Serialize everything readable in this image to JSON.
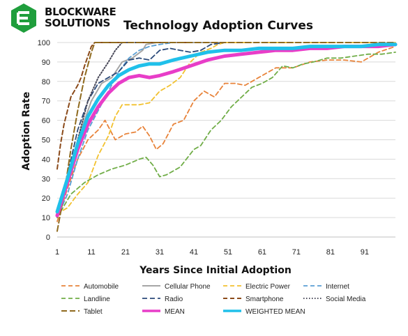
{
  "brand": {
    "line1": "BLOCKWARE",
    "line2": "SOLUTIONS",
    "accent": "#1f9e3c"
  },
  "chart_data": {
    "type": "line",
    "title": "Technology Adoption Curves",
    "xlabel": "Years Since Initial Adoption",
    "ylabel": "Adoption Rate",
    "xlim": [
      1,
      100
    ],
    "ylim": [
      0,
      100
    ],
    "xticks": [
      1,
      11,
      21,
      31,
      41,
      51,
      61,
      71,
      81,
      91
    ],
    "yticks": [
      0,
      10,
      20,
      30,
      40,
      50,
      60,
      70,
      80,
      90,
      100
    ],
    "grid": "horizontal",
    "legend": "bottom",
    "series": [
      {
        "name": "Automobile",
        "color": "#e8833a",
        "dash": "6,4",
        "width": 1.8,
        "x": [
          1,
          4,
          7,
          10,
          13,
          15,
          18,
          21,
          24,
          26,
          28,
          30,
          32,
          35,
          38,
          41,
          44,
          47,
          50,
          53,
          56,
          60,
          65,
          70,
          75,
          80,
          85,
          90,
          95,
          100
        ],
        "y": [
          8,
          25,
          40,
          50,
          55,
          60,
          50,
          53,
          54,
          57,
          52,
          45,
          48,
          58,
          60,
          70,
          75,
          72,
          79,
          79,
          78,
          82,
          87,
          87,
          90,
          91,
          91,
          90,
          95,
          98
        ]
      },
      {
        "name": "Cellular Phone",
        "color": "#a6a6a6",
        "dash": "",
        "width": 2,
        "x": [
          1,
          5,
          8,
          11,
          14,
          17,
          20,
          23,
          26,
          27,
          30,
          35,
          40,
          45,
          50
        ],
        "y": [
          10,
          35,
          55,
          70,
          79,
          82,
          90,
          92,
          96,
          99,
          100,
          100,
          100,
          100,
          100
        ]
      },
      {
        "name": "Electric Power",
        "color": "#f2c12e",
        "dash": "6,4",
        "width": 1.8,
        "x": [
          1,
          4,
          7,
          10,
          13,
          16,
          18,
          20,
          22,
          25,
          28,
          31,
          34,
          37,
          40,
          43,
          46,
          48,
          50,
          55,
          60,
          70,
          80,
          90,
          100
        ],
        "y": [
          12,
          15,
          22,
          28,
          42,
          52,
          62,
          68,
          68,
          68,
          69,
          75,
          78,
          82,
          90,
          95,
          97,
          99,
          100,
          100,
          100,
          100,
          100,
          100,
          100
        ]
      },
      {
        "name": "Internet",
        "color": "#5a9fd4",
        "dash": "6,4",
        "width": 1.8,
        "x": [
          1,
          4,
          7,
          10,
          13,
          16,
          19,
          22,
          25,
          28,
          31,
          35
        ],
        "y": [
          10,
          22,
          40,
          55,
          65,
          75,
          85,
          92,
          96,
          98,
          99,
          100
        ]
      },
      {
        "name": "Landline",
        "color": "#70ad47",
        "dash": "6,4",
        "width": 1.8,
        "x": [
          1,
          5,
          9,
          13,
          17,
          21,
          25,
          27,
          29,
          31,
          33,
          37,
          41,
          43,
          46,
          49,
          52,
          55,
          58,
          61,
          64,
          67,
          70,
          73,
          76,
          80,
          84,
          88,
          92,
          96,
          100
        ],
        "y": [
          10,
          22,
          28,
          32,
          35,
          37,
          40,
          41,
          37,
          31,
          32,
          36,
          45,
          47,
          55,
          60,
          67,
          72,
          77,
          79,
          82,
          88,
          87,
          89,
          90,
          92,
          92,
          93,
          94,
          94,
          95
        ]
      },
      {
        "name": "Radio",
        "color": "#2b4a7a",
        "dash": "7,4",
        "width": 1.8,
        "x": [
          1,
          4,
          7,
          10,
          13,
          16,
          19,
          22,
          25,
          28,
          31,
          34,
          37,
          40,
          43,
          46,
          50
        ],
        "y": [
          12,
          32,
          55,
          70,
          79,
          82,
          85,
          91,
          92,
          91,
          96,
          97,
          96,
          95,
          96,
          99,
          100
        ]
      },
      {
        "name": "Smartphone",
        "color": "#8b4a1a",
        "dash": "6,4",
        "width": 2,
        "x": [
          1,
          2,
          3,
          4,
          5,
          6,
          7,
          8,
          9,
          10,
          11,
          12,
          13,
          15,
          20,
          30,
          40
        ],
        "y": [
          35,
          48,
          58,
          65,
          72,
          75,
          78,
          82,
          88,
          93,
          98,
          100,
          100,
          100,
          100,
          100,
          100
        ]
      },
      {
        "name": "Social Media",
        "color": "#4a4a5a",
        "dash": "1.5,2.5",
        "width": 2,
        "x": [
          1,
          4,
          7,
          10,
          13,
          16,
          18,
          20,
          25
        ],
        "y": [
          12,
          30,
          50,
          70,
          82,
          90,
          96,
          100,
          100
        ]
      },
      {
        "name": "Tablet",
        "color": "#8f6a1e",
        "dash": "8,4",
        "width": 2,
        "x": [
          1,
          3,
          5,
          7,
          9,
          11,
          12,
          14,
          20,
          30,
          40,
          50,
          60,
          70,
          80,
          90,
          100
        ],
        "y": [
          3,
          22,
          45,
          65,
          82,
          95,
          100,
          100,
          100,
          100,
          100,
          100,
          100,
          100,
          100,
          100,
          100
        ]
      },
      {
        "name": "MEAN",
        "color": "#e83dc8",
        "dash": "",
        "width": 5,
        "x": [
          1,
          4,
          7,
          10,
          13,
          16,
          19,
          22,
          25,
          28,
          31,
          35,
          40,
          45,
          50,
          55,
          60,
          65,
          70,
          75,
          80,
          85,
          90,
          95,
          100
        ],
        "y": [
          11,
          28,
          45,
          58,
          67,
          74,
          79,
          82,
          83,
          82,
          83,
          85,
          88,
          91,
          93,
          94,
          95,
          96,
          96,
          97,
          97,
          98,
          98,
          98,
          99
        ]
      },
      {
        "name": "WEIGHTED MEAN",
        "color": "#20c0ea",
        "dash": "",
        "width": 5,
        "x": [
          1,
          4,
          7,
          10,
          13,
          16,
          19,
          22,
          25,
          28,
          31,
          35,
          40,
          45,
          50,
          55,
          60,
          65,
          70,
          75,
          80,
          85,
          90,
          95,
          100
        ],
        "y": [
          13,
          30,
          48,
          62,
          71,
          78,
          83,
          86,
          88,
          89,
          89,
          91,
          93,
          95,
          96,
          96,
          97,
          97,
          97,
          98,
          98,
          98,
          98,
          99,
          99
        ]
      }
    ]
  }
}
